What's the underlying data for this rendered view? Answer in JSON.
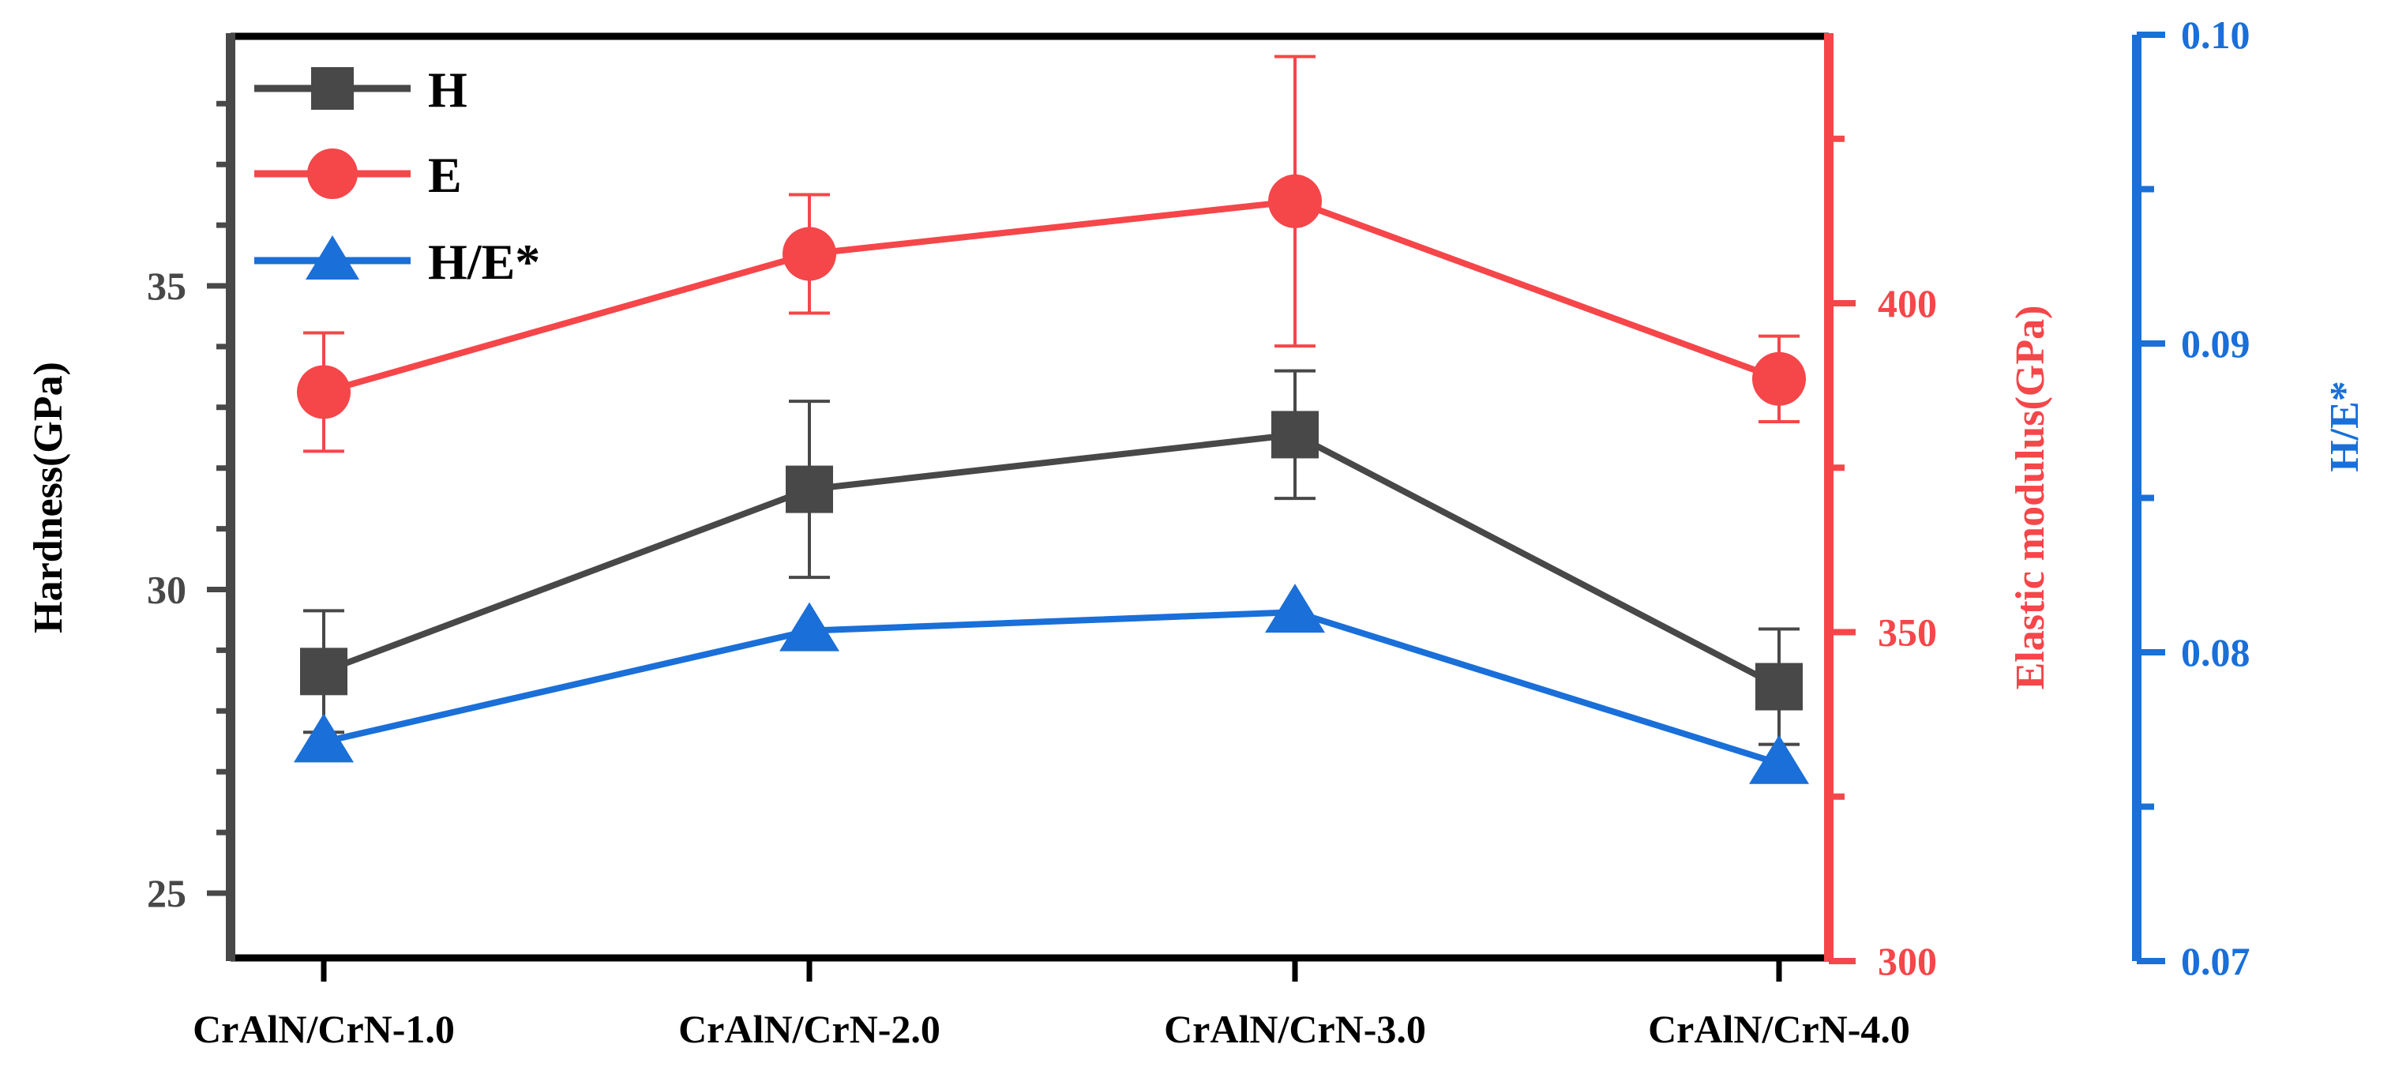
{
  "chart_data": {
    "type": "line",
    "categories": [
      "CrAlN/CrN-1.0",
      "CrAlN/CrN-2.0",
      "CrAlN/CrN-3.0",
      "CrAlN/CrN-4.0"
    ],
    "series": [
      {
        "name": "H",
        "axis": "left",
        "marker": "square",
        "color": "#484848",
        "values": [
          28.65,
          31.65,
          32.55,
          28.4
        ],
        "error": [
          1.0,
          1.45,
          1.05,
          0.95
        ]
      },
      {
        "name": "E",
        "axis": "right",
        "marker": "circle",
        "color": "#f5464a",
        "values": [
          386.5,
          407.5,
          415.5,
          388.5
        ],
        "error": [
          9,
          9,
          22,
          6.5
        ]
      },
      {
        "name": "H/E*",
        "axis": "right2",
        "marker": "triangle",
        "color": "#1a6fd8",
        "values": [
          0.0771,
          0.0807,
          0.0813,
          0.0764
        ]
      }
    ],
    "axes": {
      "left": {
        "label": "Hardness(GPa)",
        "range": [
          24,
          39
        ],
        "ticks": [
          25,
          30,
          35
        ],
        "tick_labels": [
          "25",
          "30",
          "35"
        ],
        "color": "#484848"
      },
      "right": {
        "label": "Elastic modulus(GPa)",
        "range": [
          300,
          440
        ],
        "ticks": [
          300,
          350,
          400
        ],
        "tick_labels": [
          "300",
          "350",
          "400"
        ],
        "minor_ticks": [
          325,
          375,
          425
        ],
        "color": "#f5464a"
      },
      "right2": {
        "label": "H/E*",
        "range": [
          0.07,
          0.1
        ],
        "ticks": [
          0.07,
          0.08,
          0.09,
          0.1
        ],
        "tick_labels": [
          "0.07",
          "0.08",
          "0.09",
          "0.10"
        ],
        "minor_ticks": [
          0.075,
          0.085,
          0.095
        ],
        "color": "#1a6fd8"
      }
    },
    "legend": "top-left",
    "grid": false
  }
}
